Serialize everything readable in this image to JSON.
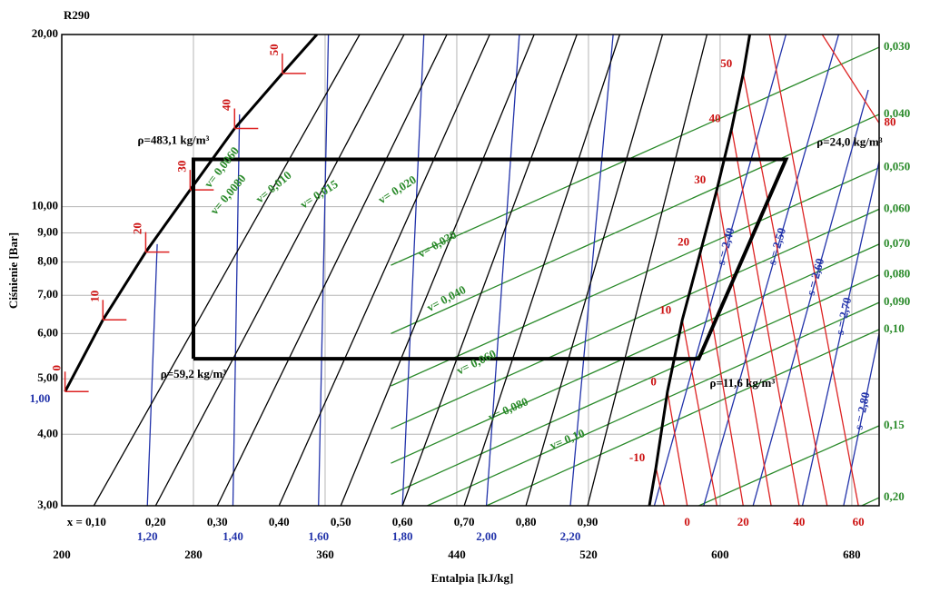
{
  "chart_data": {
    "type": "line",
    "title": "R290",
    "xlabel": "Entalpia [kJ/kg]",
    "ylabel": "Ciśnienie [Bar]",
    "xlim": [
      200,
      696.6
    ],
    "ylim": [
      3,
      20
    ],
    "y_scale": "log",
    "grid": true,
    "xticks": [
      200,
      280,
      360,
      440,
      520,
      600,
      680
    ],
    "yticks": [
      {
        "value": 3,
        "label": "3,00"
      },
      {
        "value": 4,
        "label": "4,00"
      },
      {
        "value": 5,
        "label": "5,00"
      },
      {
        "value": 6,
        "label": "6,00"
      },
      {
        "value": 7,
        "label": "7,00"
      },
      {
        "value": 8,
        "label": "8,00"
      },
      {
        "value": 9,
        "label": "9,00"
      },
      {
        "value": 10,
        "label": "10,00"
      },
      {
        "value": 20,
        "label": "20,00"
      }
    ],
    "cycle": {
      "color": "#000000",
      "x": [
        280,
        280,
        640,
        587,
        280
      ],
      "y": [
        5.42,
        12.1,
        12.1,
        5.42,
        5.42
      ],
      "corner_labels": [
        "ρ=59,2 kg/m³",
        "ρ=483,1 kg/m³",
        "ρ=24,0 kg/m³",
        "ρ=11,6 kg/m³"
      ]
    },
    "saturated_liquid": {
      "color": "#000000",
      "x": [
        202,
        225,
        251,
        278,
        305,
        334,
        355
      ],
      "y": [
        4.75,
        6.34,
        8.33,
        10.7,
        13.7,
        17.1,
        20
      ],
      "labels": [
        "0",
        "10",
        "20",
        "30",
        "40",
        "50",
        null
      ]
    },
    "saturated_vapor": {
      "color": "#000000",
      "x": [
        557,
        561,
        568,
        577,
        588,
        598,
        607,
        614,
        618
      ],
      "y": [
        3,
        3.5,
        4.75,
        6.34,
        8.33,
        10.7,
        13.7,
        17.1,
        20
      ]
    },
    "quality_lines": {
      "color": "#000000",
      "items": [
        {
          "label": "x = 0,10",
          "x": [
            219.5,
            381
          ],
          "y": [
            3,
            20
          ]
        },
        {
          "label": "0,20",
          "x": [
            257,
            408
          ],
          "y": [
            3,
            20
          ]
        },
        {
          "label": "0,30",
          "x": [
            294.5,
            434
          ],
          "y": [
            3,
            20
          ]
        },
        {
          "label": "0,40",
          "x": [
            332,
            460
          ],
          "y": [
            3,
            20
          ]
        },
        {
          "label": "0,50",
          "x": [
            369.5,
            487
          ],
          "y": [
            3,
            20
          ]
        },
        {
          "label": "0,60",
          "x": [
            407,
            513
          ],
          "y": [
            3,
            20
          ]
        },
        {
          "label": "0,70",
          "x": [
            444.5,
            539
          ],
          "y": [
            3,
            20
          ]
        },
        {
          "label": "0,80",
          "x": [
            482,
            565
          ],
          "y": [
            3,
            20
          ]
        },
        {
          "label": "0,90",
          "x": [
            519.5,
            592
          ],
          "y": [
            3,
            20
          ]
        }
      ]
    },
    "isentropes": {
      "color": "#2233aa",
      "items": [
        {
          "label": "1,20",
          "x": [
            252,
            258
          ],
          "y": [
            3,
            8.6
          ]
        },
        {
          "label": "1,40",
          "x": [
            304,
            308
          ],
          "y": [
            3,
            14.5
          ]
        },
        {
          "label": "1,60",
          "x": [
            356,
            362
          ],
          "y": [
            3,
            20
          ]
        },
        {
          "label": "1,80",
          "x": [
            407,
            420
          ],
          "y": [
            3,
            20
          ]
        },
        {
          "label": "2,00",
          "x": [
            458,
            478
          ],
          "y": [
            3,
            20
          ]
        },
        {
          "label": "2,20",
          "x": [
            509,
            535
          ],
          "y": [
            3,
            20
          ]
        }
      ]
    },
    "isentropes_vapor": {
      "color": "#2233aa",
      "items": [
        {
          "label": "s = 2,40",
          "x": [
            560,
            640
          ],
          "y": [
            3,
            20
          ]
        },
        {
          "label": "s = 2,50",
          "x": [
            590,
            672
          ],
          "y": [
            3,
            20
          ]
        },
        {
          "label": "s = 2,60",
          "x": [
            620,
            690
          ],
          "y": [
            3,
            16
          ]
        },
        {
          "label": "s = 2,70",
          "x": [
            650,
            696.6
          ],
          "y": [
            3,
            12
          ]
        },
        {
          "label": "s = 2,80",
          "x": [
            675,
            696.6
          ],
          "y": [
            3,
            6
          ]
        }
      ]
    },
    "left_label": "1,00",
    "isochores": {
      "color": "#2a8a2a",
      "items": [
        {
          "label": "0,030",
          "x": [
            400,
            696.6
          ],
          "y": [
            7.9,
            19.0
          ]
        },
        {
          "label": "0,040",
          "x": [
            400,
            696.6
          ],
          "y": [
            6.0,
            14.5
          ]
        },
        {
          "label": "0,050",
          "x": [
            400,
            696.6
          ],
          "y": [
            4.86,
            11.7
          ]
        },
        {
          "label": "0,060",
          "x": [
            400,
            696.6
          ],
          "y": [
            4.09,
            9.9
          ]
        },
        {
          "label": "0,070",
          "x": [
            400,
            696.6
          ],
          "y": [
            3.56,
            8.6
          ]
        },
        {
          "label": "0,080",
          "x": [
            400,
            696.6
          ],
          "y": [
            3.14,
            7.6
          ]
        },
        {
          "label": "0,090",
          "x": [
            422,
            696.6
          ],
          "y": [
            3,
            6.8
          ]
        },
        {
          "label": "0,10",
          "x": [
            458,
            696.6
          ],
          "y": [
            3,
            6.1
          ]
        },
        {
          "label": "0,15",
          "x": [
            587,
            696.6
          ],
          "y": [
            3,
            4.14
          ]
        },
        {
          "label": "0,20",
          "x": [
            686,
            696.6
          ],
          "y": [
            3,
            3.1
          ]
        }
      ]
    },
    "isochore_labels": [
      "v= 0,0060",
      "v= 0,0080",
      "v= 0,010",
      "v= 0,015",
      "v= 0,020",
      "v= 0,030",
      "v= 0,040",
      "v= 0,060",
      "v= 0,080",
      "v= 0,10"
    ],
    "isotherms": {
      "color": "#dd2222",
      "items": [
        {
          "label_top": "-10",
          "x": [
            561,
            566
          ],
          "y": [
            3.5,
            3
          ]
        },
        {
          "label_top": "0",
          "label_bottom": "0",
          "x": [
            568,
            580
          ],
          "y": [
            4.75,
            3
          ]
        },
        {
          "label_top": "10",
          "x": [
            577,
            598
          ],
          "y": [
            6.34,
            3
          ]
        },
        {
          "label_top": "20",
          "label_bottom": "20",
          "x": [
            588,
            614
          ],
          "y": [
            8.33,
            3
          ]
        },
        {
          "label_top": "30",
          "x": [
            598,
            631
          ],
          "y": [
            10.7,
            3
          ]
        },
        {
          "label_top": "40",
          "label_bottom": "40",
          "x": [
            607,
            648
          ],
          "y": [
            13.7,
            3
          ]
        },
        {
          "label_top": "50",
          "x": [
            614,
            665
          ],
          "y": [
            17.1,
            3
          ]
        },
        {
          "label_bottom": "60",
          "x": [
            630,
            684
          ],
          "y": [
            20,
            3
          ]
        },
        {
          "label_bottom": "80",
          "x": [
            662,
            696.6
          ],
          "y": [
            20,
            14
          ]
        }
      ]
    }
  }
}
